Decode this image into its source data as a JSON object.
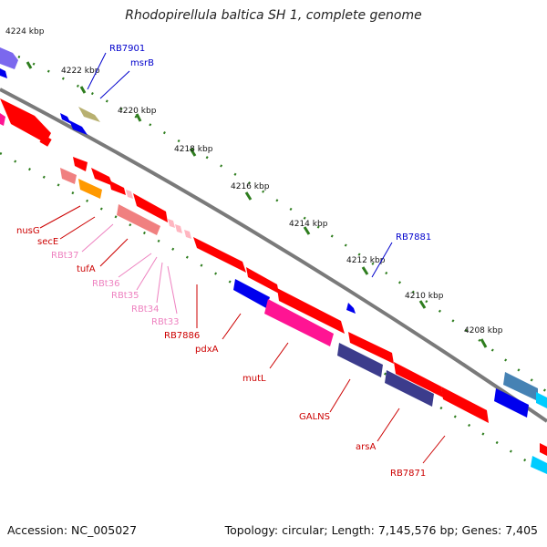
{
  "title": "Rhodopirellula baltica SH 1, complete genome",
  "footer": {
    "accession": "Accession: NC_005027",
    "summary": "Topology: circular; Length: 7,145,576 bp; Genes: 7,405"
  },
  "ticks": [
    "4224 kbp",
    "4222 kbp",
    "4220 kbp",
    "4218 kbp",
    "4216 kbp",
    "4214 kbp",
    "4212 kbp",
    "4210 kbp",
    "4208 kbp"
  ],
  "labels": {
    "RB7901": "RB7901",
    "msrB": "msrB",
    "RB7881": "RB7881",
    "nusG": "nusG",
    "secE": "secE",
    "RBt37": "RBt37",
    "tufA": "tufA",
    "RBt36": "RBt36",
    "RBt35": "RBt35",
    "RBt34": "RBt34",
    "RBt33": "RBt33",
    "RB7886": "RB7886",
    "pdxA": "pdxA",
    "mutL": "mutL",
    "GALNS": "GALNS",
    "arsA": "arsA",
    "RB7871": "RB7871"
  },
  "colors": {
    "backbone": "#7a7a7a",
    "tick": "#2e7d1e",
    "gene_red": "#ff0000",
    "gene_blue": "#0000ee",
    "gene_magenta": "#ff1493",
    "gene_navy": "#3c3c8c",
    "gene_salmon": "#f08080",
    "gene_orange": "#ff9900",
    "gene_olive": "#b8b070",
    "gene_steel": "#4682b4",
    "gene_pink": "#ffb6c1",
    "gene_cyan": "#00ccff",
    "gene_violet": "#7b68ee",
    "label_red": "#cc0000",
    "label_blue": "#0000cc",
    "label_pink": "#ee82c0"
  }
}
